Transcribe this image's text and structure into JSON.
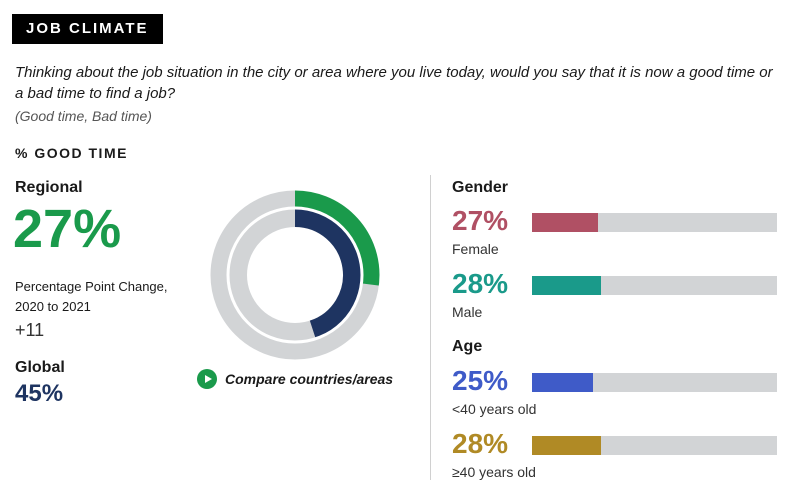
{
  "header": {
    "tag": "JOB CLIMATE"
  },
  "question": "Thinking about the job situation in the city or area where you live today, would you say that it is now a good time or a bad time to find a job?",
  "answers": "(Good time, Bad time)",
  "measure_label": "% GOOD TIME",
  "regional": {
    "label": "Regional",
    "value": "27%",
    "change_label": "Percentage Point Change, 2020 to 2021",
    "change_value": "+11"
  },
  "global": {
    "label": "Global",
    "value": "45%"
  },
  "compare_link": "Compare countries/areas",
  "colors": {
    "regional": "#1a9a4b",
    "global": "#1e3461",
    "female": "#b05064",
    "male": "#1a9a8a",
    "under40": "#3f5bc8",
    "over40": "#b08a25",
    "track": "#d2d4d6"
  },
  "chart_data": [
    {
      "type": "pie",
      "subtype": "concentric-donut",
      "series": [
        {
          "name": "Regional",
          "value": 27,
          "ring": "outer"
        },
        {
          "name": "Global",
          "value": 45,
          "ring": "inner"
        }
      ],
      "max": 100
    },
    {
      "type": "bar",
      "orientation": "horizontal",
      "groups": [
        {
          "title": "Gender",
          "items": [
            {
              "label": "Female",
              "value": 27,
              "display": "27%"
            },
            {
              "label": "Male",
              "value": 28,
              "display": "28%"
            }
          ]
        },
        {
          "title": "Age",
          "items": [
            {
              "label": "<40 years old",
              "value": 25,
              "display": "25%"
            },
            {
              "label": "≥40 years old",
              "value": 28,
              "display": "28%"
            }
          ]
        }
      ],
      "xlim": [
        0,
        100
      ]
    }
  ]
}
